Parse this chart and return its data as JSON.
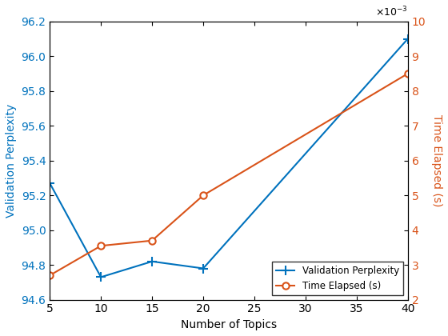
{
  "x": [
    5,
    10,
    15,
    20,
    40
  ],
  "validation_perplexity": [
    95.27,
    94.73,
    94.82,
    94.78,
    96.1
  ],
  "time_elapsed": [
    0.0027,
    0.00355,
    0.0037,
    0.005,
    0.0085
  ],
  "xlabel": "Number of Topics",
  "ylabel_left": "Validation Perplexity",
  "ylabel_right": "Time Elapsed (s)",
  "legend_labels": [
    "Validation Perplexity",
    "Time Elapsed (s)"
  ],
  "color_blue": "#0072BD",
  "color_orange": "#D95319",
  "xlim": [
    5,
    40
  ],
  "ylim_left": [
    94.6,
    96.2
  ],
  "ylim_right": [
    0.002,
    0.01
  ],
  "xticks": [
    5,
    10,
    15,
    20,
    25,
    30,
    35,
    40
  ],
  "yticks_left": [
    94.6,
    94.8,
    95.0,
    95.2,
    95.4,
    95.6,
    95.8,
    96.0,
    96.2
  ],
  "yticks_right_vals": [
    0.002,
    0.003,
    0.004,
    0.005,
    0.006,
    0.007,
    0.008,
    0.009,
    0.01
  ],
  "yticks_right_labels": [
    "2",
    "3",
    "4",
    "5",
    "6",
    "7",
    "8",
    "9",
    "10"
  ],
  "exponent_label": "×10⁻³",
  "figsize": [
    5.6,
    4.2
  ],
  "dpi": 100
}
